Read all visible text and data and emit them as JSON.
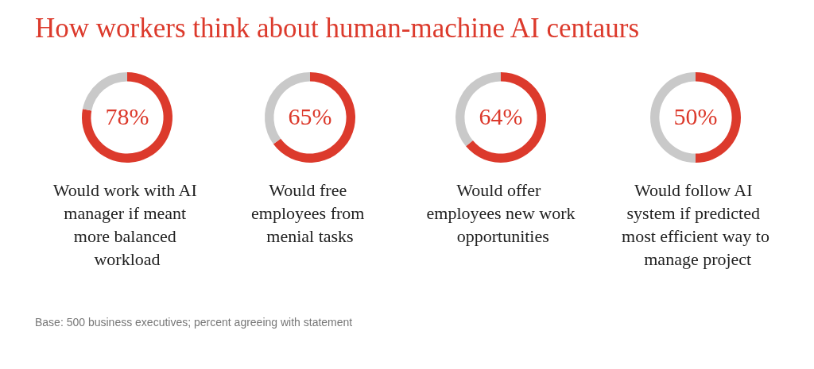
{
  "chart_data": [
    {
      "type": "other",
      "title": "How workers think about human-machine AI centaurs"
    },
    {
      "type": "donut",
      "title": "Would work with AI manager if meant more balanced workload",
      "categories": [
        null,
        null
      ],
      "values": [
        78,
        22
      ],
      "colors": [
        "#dc3a2c",
        "#c9c9c9"
      ],
      "value_labels": [
        "78%",
        null
      ]
    },
    {
      "type": "donut",
      "title": "Would free employees from menial tasks",
      "categories": [
        null,
        null
      ],
      "values": [
        65,
        35
      ],
      "colors": [
        "#dc3a2c",
        "#c9c9c9"
      ],
      "value_labels": [
        "65%",
        null
      ]
    },
    {
      "type": "donut",
      "title": "Would offer employees new work opportunities",
      "categories": [
        null,
        null
      ],
      "values": [
        64,
        36
      ],
      "colors": [
        "#dc3a2c",
        "#c9c9c9"
      ],
      "value_labels": [
        "64%",
        null
      ]
    },
    {
      "type": "donut",
      "title": "Would follow AI system if predicted most efficient way to manage project",
      "categories": [
        null,
        null
      ],
      "values": [
        50,
        50
      ],
      "colors": [
        "#dc3a2c",
        "#c9c9c9"
      ],
      "value_labels": [
        "50%",
        null
      ]
    },
    {
      "type": "other",
      "annotations": [
        "Base: 500 business executives; percent agreeing with statement"
      ]
    }
  ]
}
